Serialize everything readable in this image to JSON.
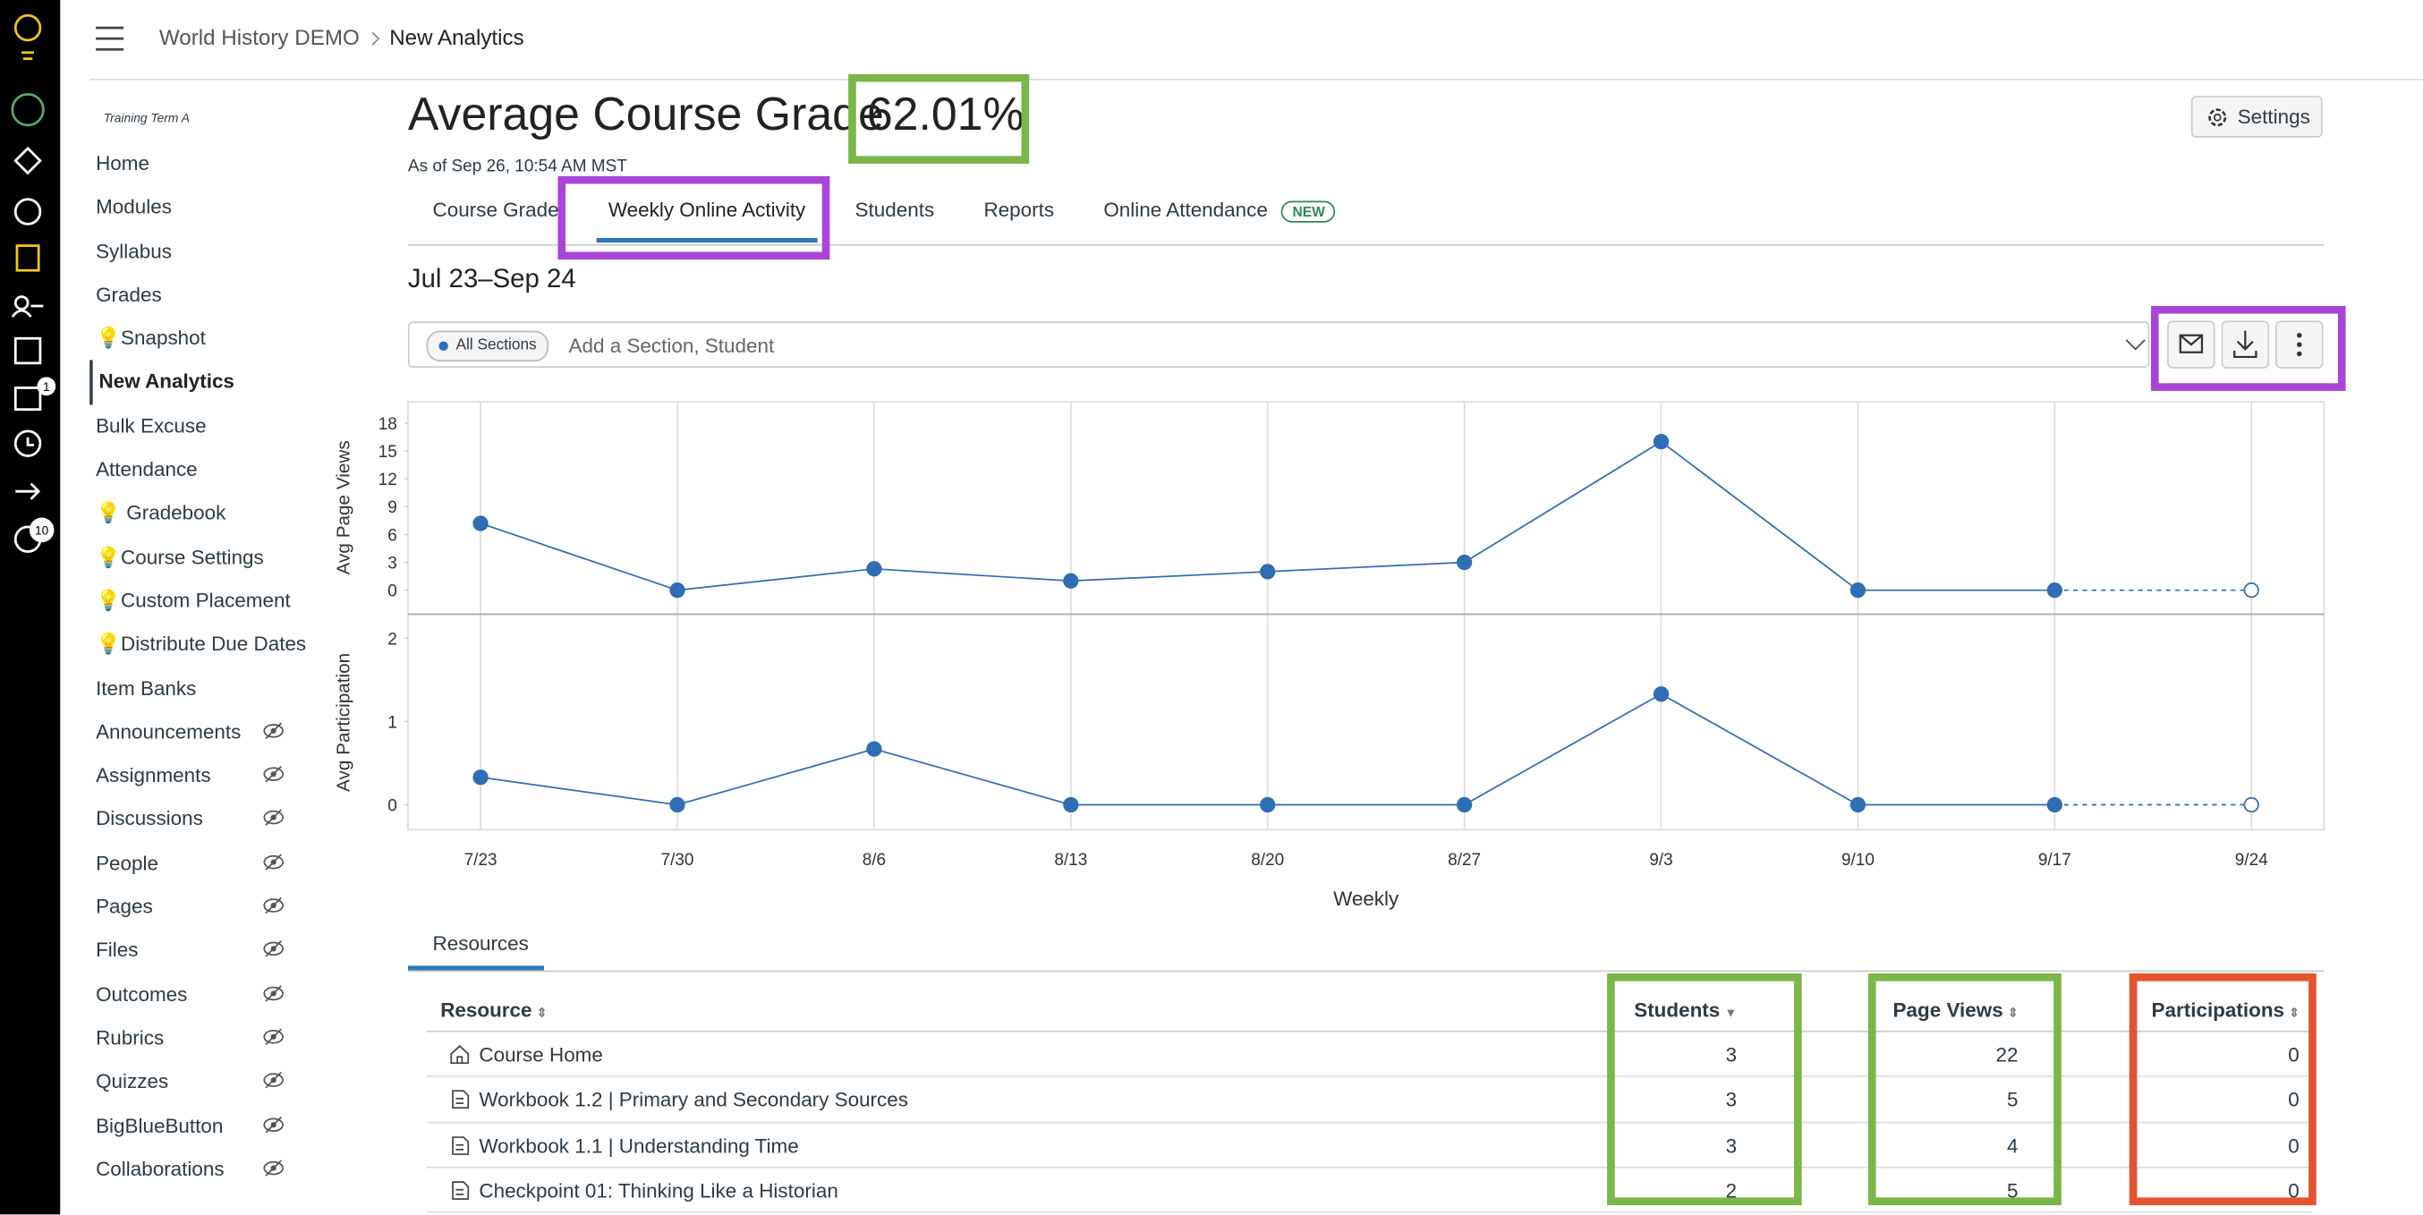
{
  "header": {
    "breadcrumb": [
      "World History DEMO",
      "New Analytics"
    ]
  },
  "global_nav": {
    "badges": [
      "1",
      "10"
    ]
  },
  "course_nav": {
    "term": "Training Term A",
    "active": 5,
    "items": [
      {
        "label": "Home"
      },
      {
        "label": "Modules"
      },
      {
        "label": "Syllabus"
      },
      {
        "label": "Grades"
      },
      {
        "label": "💡Snapshot"
      },
      {
        "label": "New Analytics"
      },
      {
        "label": "Bulk Excuse"
      },
      {
        "label": "Attendance"
      },
      {
        "label": "💡 Gradebook"
      },
      {
        "label": "💡Course Settings"
      },
      {
        "label": "💡Custom Placement"
      },
      {
        "label": "💡Distribute Due Dates"
      },
      {
        "label": "Item Banks"
      },
      {
        "label": "Announcements",
        "hidden": true
      },
      {
        "label": "Assignments",
        "hidden": true
      },
      {
        "label": "Discussions",
        "hidden": true
      },
      {
        "label": "People",
        "hidden": true
      },
      {
        "label": "Pages",
        "hidden": true
      },
      {
        "label": "Files",
        "hidden": true
      },
      {
        "label": "Outcomes",
        "hidden": true
      },
      {
        "label": "Rubrics",
        "hidden": true
      },
      {
        "label": "Quizzes",
        "hidden": true
      },
      {
        "label": "BigBlueButton",
        "hidden": true
      },
      {
        "label": "Collaborations",
        "hidden": true
      }
    ]
  },
  "page": {
    "title": "Average Course Grade",
    "grade": "62.01%",
    "as_of": "As of Sep 26, 10:54 AM MST",
    "settings": "Settings",
    "tabs": [
      "Course Grade",
      "Weekly Online Activity",
      "Students",
      "Reports",
      "Online Attendance"
    ],
    "active_tab": 1,
    "new_badge": "NEW",
    "date_range": "Jul 23–Sep 24",
    "filter_chip": "All Sections",
    "filter_placeholder": "Add a Section, Student"
  },
  "chart_data": {
    "type": "line",
    "categories": [
      "7/23",
      "7/30",
      "8/6",
      "8/13",
      "8/20",
      "8/27",
      "9/3",
      "9/10",
      "9/17",
      "9/24"
    ],
    "xlabel": "Weekly",
    "color": "#2f6db5",
    "grid": true,
    "last_point_partial": true,
    "panels": [
      {
        "ylabel": "Avg Page Views",
        "values": [
          7.2,
          0,
          2.3,
          1,
          2,
          3,
          16,
          0,
          0,
          0
        ],
        "ylim": [
          -2.5,
          20.3
        ],
        "yticks": [
          0,
          3,
          6,
          9,
          12,
          15,
          18
        ]
      },
      {
        "ylabel": "Avg Participation",
        "values": [
          0.33,
          0,
          0.67,
          0,
          0,
          0,
          1.33,
          0,
          0,
          0
        ],
        "ylim": [
          -0.3,
          2.28
        ],
        "yticks": [
          0,
          1,
          2
        ]
      }
    ]
  },
  "table": {
    "tab": "Resources",
    "columns": [
      "Resource",
      "Students",
      "Page Views",
      "Participations"
    ],
    "sort_column": 1,
    "rows": [
      [
        "Course Home",
        3,
        22,
        0
      ],
      [
        "Workbook 1.2 | Primary and Secondary Sources",
        3,
        5,
        0
      ],
      [
        "Workbook 1.1 | Understanding Time",
        3,
        4,
        0
      ],
      [
        "Checkpoint 01: Thinking Like a Historian",
        2,
        5,
        0
      ]
    ]
  }
}
